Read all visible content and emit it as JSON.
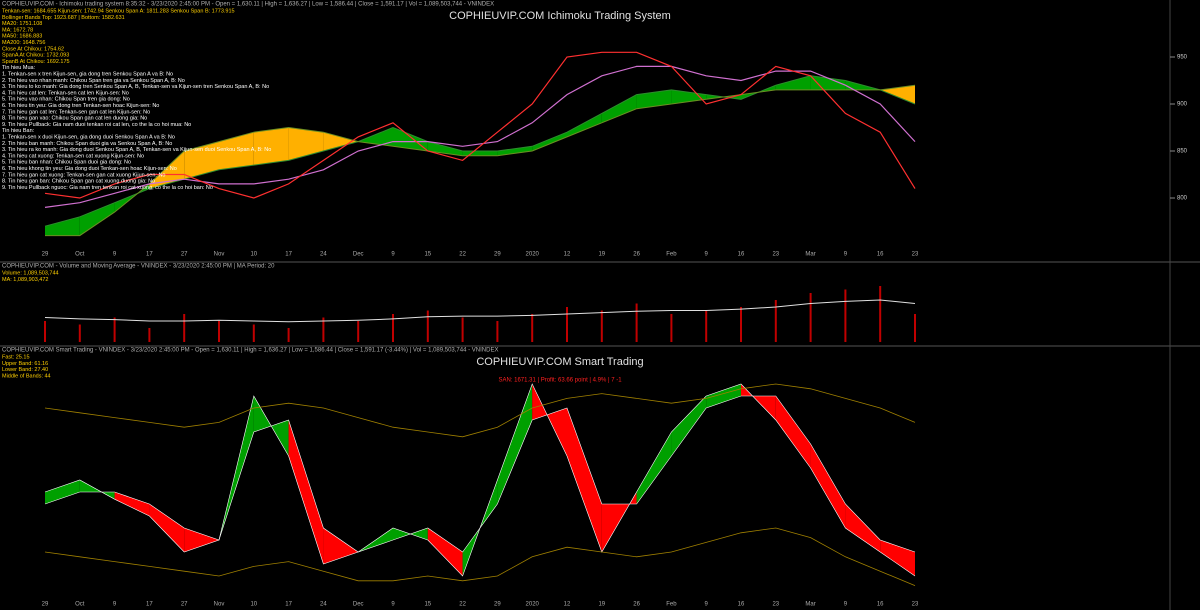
{
  "chart_data": [
    {
      "type": "ichimoku",
      "title": "COPHIEUVIP.COM Ichimoku Trading System",
      "subtitle": "COPHIEUVIP.COM - Ichimoku trading system 8:35:32 - 3/23/2020 2:45:00 PM - Open = 1,630.11 | High = 1,636.27 | Low = 1,586.44 | Close = 1,591.17 | Vol = 1,089,503,744 - VNINDEX",
      "annotations": [
        "Tenkan-sen: 1684.655  Kijun-sen: 1742.94  Senkou Span A: 1811.283  Senkou Span B: 1773.915",
        "Bollinger Bands Top: 1923.687 | Bottom: 1582.631",
        "MA20: 1751.108",
        "MA: 1672.78",
        "MA50: 1686.883",
        "MA200: 1648.756",
        "Close At Chikou: 1754.62",
        "SpanA At Chikou: 1732.093",
        "SpanB At Chikou: 1692.175",
        "Tin hieu Mua:",
        "1. Tenkan-sen x tren Kijun-sen, gia dong tren Senkou Span A va B: No",
        "2. Tin hieu vao nhan manh: Chikou Span tren gia va Senkou Span A, B: No",
        "3. Tin hieu to ko manh: Gia dong tren Senkou Span A, B, Tenkan-sen va Kijun-sen tren Senkou Span A, B: No",
        "4. Tin hieu cat len: Tenkan-sen cat len Kijun-sen: No",
        "5. Tin hieu vao nhan: Chikou Span tren gia dong: No",
        "6. Tin hieu tin yeu: Gia dong tren Tenkan-sen hoac Kijun-sen: No",
        "7. Tin hieu gan cat len: Tenkan-sen gan cat len Kijun-sen: No",
        "8. Tin hieu gan vao: Chikou Span gan cat len duong gia: No",
        "9. Tin hieu Pullback: Gia nam duoi tenkan roi cat len, co the la co hoi mua: No",
        "Tin hieu Ban:",
        "1. Tenkan-sen x duoi Kijun-sen, gia dong duoi Senkou Span A va B: No",
        "2. Tin hieu ban manh: Chikou Span duoi gia va Senkou Span A, B: No",
        "3. Tin hieu ra ko manh: Gia dong duoi Senkou Span A, B, Tenkan-sen va Kijun-sen duoi Senkou Span A, B: No",
        "4. Tin hieu cat xuong: Tenkan-sen cat xuong Kijun-sen: No",
        "5. Tin hieu ban nhan: Chikou Span duoi gia dong: No",
        "6. Tin hieu khong tin yeu: Gia dong duoi Tenkan-sen hoac Kijun-sen: No",
        "7. Tin hieu gan cat xuong: Tenkan-sen gan cat xuong Kijun-sen: No",
        "8. Tin hieu gan ban: Chikou Span gan cat xuong duong gia: No",
        "9. Tin hieu Pullback nguoc: Gia nam tren tenkan roi cat xuong, co the la co hoi ban: No"
      ],
      "categories": [
        "29",
        "Oct",
        "9",
        "17",
        "27",
        "Nov",
        "10",
        "17",
        "24",
        "Dec",
        "9",
        "15",
        "22",
        "29",
        "2020",
        "12",
        "19",
        "26",
        "Feb",
        "9",
        "16",
        "23",
        "Mar",
        "9",
        "16",
        "23"
      ],
      "series": [
        {
          "name": "Senkou Span A",
          "color": "#2e8b2e",
          "values": [
            770,
            780,
            795,
            810,
            820,
            830,
            835,
            840,
            850,
            860,
            875,
            860,
            850,
            850,
            855,
            870,
            890,
            910,
            915,
            910,
            905,
            920,
            930,
            925,
            915,
            900
          ]
        },
        {
          "name": "Senkou Span B",
          "color": "#6b8e23",
          "values": [
            760,
            760,
            785,
            815,
            850,
            860,
            870,
            875,
            870,
            860,
            855,
            850,
            845,
            845,
            850,
            865,
            880,
            895,
            900,
            905,
            910,
            915,
            915,
            915,
            915,
            920
          ]
        },
        {
          "name": "Kijun-sen",
          "color": "#d070d0",
          "values": [
            790,
            795,
            805,
            815,
            820,
            815,
            815,
            820,
            830,
            850,
            860,
            860,
            855,
            860,
            880,
            910,
            930,
            940,
            940,
            930,
            925,
            935,
            935,
            920,
            900,
            860
          ]
        },
        {
          "name": "Tenkan-sen",
          "color": "#ff3030",
          "values": [
            805,
            800,
            815,
            825,
            825,
            810,
            800,
            815,
            840,
            865,
            880,
            850,
            840,
            870,
            900,
            950,
            955,
            955,
            940,
            900,
            910,
            940,
            930,
            890,
            870,
            810
          ]
        }
      ],
      "cloud_colors": [
        "#00a000",
        "#ffb000"
      ],
      "ylim": [
        750,
        1000
      ],
      "yticks": [
        800,
        850,
        900,
        950
      ]
    },
    {
      "type": "bar",
      "subtitle": "COPHIEUVIP.COM - Volume and Moving Average - VNINDEX - 3/23/2020 2:45:00 PM | MA Period: 20",
      "annotations": [
        "Volume: 1,089,503,744",
        "MA: 1,089,903,472"
      ],
      "values": [
        30,
        25,
        35,
        20,
        40,
        30,
        25,
        20,
        35,
        30,
        40,
        45,
        35,
        30,
        40,
        50,
        45,
        55,
        40,
        45,
        50,
        60,
        70,
        75,
        80,
        40
      ],
      "color": "#c00000",
      "series": [
        {
          "name": "MA",
          "color": "#e0e0e0",
          "values": [
            35,
            33,
            32,
            30,
            30,
            31,
            30,
            29,
            30,
            31,
            33,
            36,
            37,
            37,
            38,
            40,
            42,
            44,
            45,
            45,
            47,
            50,
            55,
            58,
            60,
            55
          ]
        }
      ],
      "ylim": [
        0,
        100
      ]
    },
    {
      "type": "oscillator",
      "title": "COPHIEUVIP.COM Smart Trading",
      "subtitle": "COPHIEUVIP.COM Smart Trading - VNINDEX - 3/23/2020 2:45:00 PM - Open = 1,630.11 | High = 1,636.27 | Low = 1,586.44 | Close = 1,591.17 (-3.44%) | Vol = 1,089,503,744 - VNINDEX",
      "annotations": [
        "Fast: 25.15",
        "Upper Band: 61.16",
        "Lower Band: 27.40",
        "Middle of Bands: 44"
      ],
      "signal": "SAN: 1671.31 | Profit: 63.66 point | 4.9% | 7 -1",
      "categories": [
        "29",
        "Oct",
        "9",
        "17",
        "27",
        "Nov",
        "10",
        "17",
        "24",
        "Dec",
        "9",
        "15",
        "22",
        "29",
        "2020",
        "12",
        "19",
        "26",
        "Feb",
        "9",
        "16",
        "23",
        "Mar",
        "9",
        "16",
        "23"
      ],
      "series": [
        {
          "name": "Fast",
          "color": "#ffffff",
          "values": [
            45,
            50,
            42,
            35,
            20,
            25,
            85,
            60,
            15,
            20,
            30,
            25,
            10,
            50,
            90,
            60,
            20,
            45,
            70,
            85,
            90,
            75,
            55,
            30,
            20,
            10
          ]
        },
        {
          "name": "Slow",
          "color": "#ffffff",
          "values": [
            40,
            45,
            45,
            40,
            30,
            25,
            70,
            75,
            30,
            20,
            25,
            30,
            20,
            40,
            75,
            80,
            40,
            40,
            60,
            80,
            85,
            85,
            65,
            40,
            25,
            20
          ]
        },
        {
          "name": "Upper Band",
          "color": "#a08000",
          "values": [
            80,
            78,
            76,
            74,
            72,
            74,
            80,
            82,
            80,
            76,
            72,
            70,
            68,
            72,
            80,
            84,
            86,
            84,
            82,
            84,
            88,
            90,
            88,
            84,
            80,
            74
          ]
        },
        {
          "name": "Lower Band",
          "color": "#a08000",
          "values": [
            20,
            18,
            16,
            14,
            12,
            10,
            14,
            16,
            12,
            8,
            8,
            10,
            8,
            10,
            18,
            22,
            20,
            18,
            20,
            24,
            28,
            30,
            26,
            18,
            12,
            6
          ]
        }
      ],
      "fill_colors": [
        "#00a000",
        "#ff0000"
      ],
      "ylim": [
        0,
        100
      ]
    }
  ]
}
